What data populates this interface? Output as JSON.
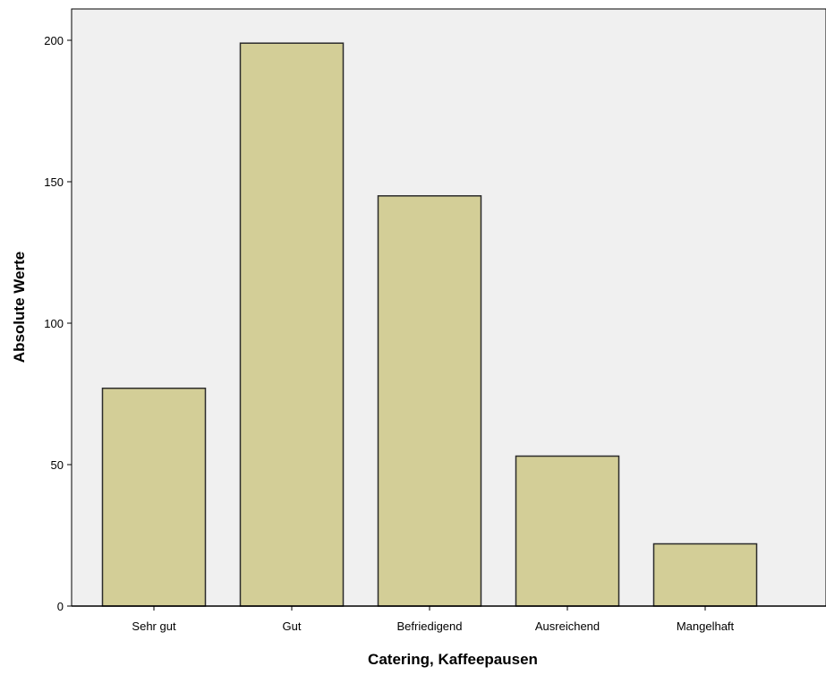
{
  "chart_data": {
    "type": "bar",
    "categories": [
      "Sehr gut",
      "Gut",
      "Befriedigend",
      "Ausreichend",
      "Mangelhaft"
    ],
    "values": [
      77,
      199,
      145,
      53,
      22
    ],
    "title": "",
    "xlabel": "Catering, Kaffeepausen",
    "ylabel": "Absolute Werte",
    "ylim": [
      0,
      210
    ],
    "yticks": [
      0,
      50,
      100,
      150,
      200
    ],
    "grid": false,
    "legend": "none",
    "colors": {
      "plot_background": "#f0f0f0",
      "bar_fill": "#d3ce97",
      "bar_stroke": "#2b2b2b",
      "axis": "#000000"
    }
  }
}
